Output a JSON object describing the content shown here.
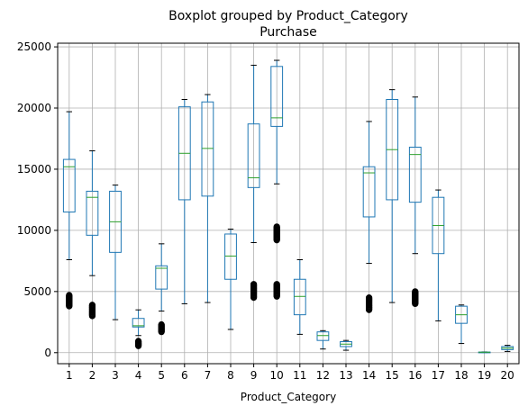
{
  "chart_data": {
    "type": "boxplot",
    "title": "Boxplot grouped by Product_Category",
    "subtitle": "Purchase",
    "xlabel": "Product_Category",
    "ylabel": "",
    "ylim": [
      -900,
      25300
    ],
    "yticks": [
      0,
      5000,
      10000,
      15000,
      20000,
      25000
    ],
    "grid": true,
    "colors": {
      "box": "#1f77b4",
      "median": "#2ca02c",
      "whisker_cap": "#000000",
      "flier": "#000000",
      "grid": "#b0b0b0"
    },
    "categories": [
      "1",
      "2",
      "3",
      "4",
      "5",
      "6",
      "7",
      "8",
      "9",
      "10",
      "11",
      "12",
      "13",
      "14",
      "15",
      "16",
      "17",
      "18",
      "19",
      "20"
    ],
    "boxes": [
      {
        "category": "1",
        "whislo": 7600,
        "q1": 11500,
        "med": 15200,
        "q3": 15800,
        "whishi": 19700,
        "fliers": [
          3800,
          4700
        ]
      },
      {
        "category": "2",
        "whislo": 6300,
        "q1": 9600,
        "med": 12700,
        "q3": 13200,
        "whishi": 16500,
        "fliers": [
          3000,
          3900
        ]
      },
      {
        "category": "3",
        "whislo": 2700,
        "q1": 8200,
        "med": 10700,
        "q3": 13200,
        "whishi": 13700,
        "fliers": []
      },
      {
        "category": "4",
        "whislo": 1400,
        "q1": 2100,
        "med": 2200,
        "q3": 2800,
        "whishi": 3500,
        "fliers": [
          550,
          950
        ]
      },
      {
        "category": "5",
        "whislo": 3400,
        "q1": 5200,
        "med": 6900,
        "q3": 7100,
        "whishi": 8900,
        "fliers": [
          1700,
          2300
        ]
      },
      {
        "category": "6",
        "whislo": 4000,
        "q1": 12500,
        "med": 16300,
        "q3": 20100,
        "whishi": 20700,
        "fliers": []
      },
      {
        "category": "7",
        "whislo": 4100,
        "q1": 12800,
        "med": 16700,
        "q3": 20500,
        "whishi": 21100,
        "fliers": []
      },
      {
        "category": "8",
        "whislo": 1900,
        "q1": 6000,
        "med": 7900,
        "q3": 9700,
        "whishi": 10100,
        "fliers": []
      },
      {
        "category": "9",
        "whislo": 9000,
        "q1": 13500,
        "med": 14300,
        "q3": 18700,
        "whishi": 23500,
        "fliers": [
          4500,
          5600
        ]
      },
      {
        "category": "10",
        "whislo": 13800,
        "q1": 18500,
        "med": 19200,
        "q3": 23400,
        "whishi": 23900,
        "fliers": [
          4600,
          5600,
          9200,
          10300
        ]
      },
      {
        "category": "11",
        "whislo": 1500,
        "q1": 3100,
        "med": 4600,
        "q3": 6000,
        "whishi": 7600,
        "fliers": []
      },
      {
        "category": "12",
        "whislo": 300,
        "q1": 1000,
        "med": 1400,
        "q3": 1700,
        "whishi": 1800,
        "fliers": []
      },
      {
        "category": "13",
        "whislo": 200,
        "q1": 500,
        "med": 700,
        "q3": 900,
        "whishi": 1000,
        "fliers": []
      },
      {
        "category": "14",
        "whislo": 7300,
        "q1": 11100,
        "med": 14700,
        "q3": 15200,
        "whishi": 18900,
        "fliers": [
          3500,
          4500
        ]
      },
      {
        "category": "15",
        "whislo": 4100,
        "q1": 12500,
        "med": 16600,
        "q3": 20700,
        "whishi": 21500,
        "fliers": []
      },
      {
        "category": "16",
        "whislo": 8100,
        "q1": 12300,
        "med": 16200,
        "q3": 16800,
        "whishi": 20900,
        "fliers": [
          4000,
          5000
        ]
      },
      {
        "category": "17",
        "whislo": 2600,
        "q1": 8100,
        "med": 10400,
        "q3": 12700,
        "whishi": 13300,
        "fliers": []
      },
      {
        "category": "18",
        "whislo": 750,
        "q1": 2400,
        "med": 3100,
        "q3": 3800,
        "whishi": 3900,
        "fliers": []
      },
      {
        "category": "19",
        "whislo": 12,
        "q1": 25,
        "med": 37,
        "q3": 50,
        "whishi": 62,
        "fliers": []
      },
      {
        "category": "20",
        "whislo": 100,
        "q1": 250,
        "med": 370,
        "q3": 500,
        "whishi": 600,
        "fliers": []
      }
    ]
  }
}
